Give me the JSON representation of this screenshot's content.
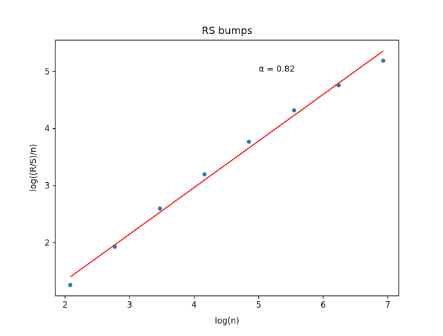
{
  "chart_data": {
    "type": "scatter",
    "title": "RS bumps",
    "xlabel": "log(n)",
    "ylabel": "log((R/S)/n)",
    "xlim": [
      1.85,
      7.17
    ],
    "ylim": [
      1.07,
      5.55
    ],
    "xticks": [
      2,
      3,
      4,
      5,
      6,
      7
    ],
    "yticks": [
      2,
      3,
      4,
      5
    ],
    "grid": false,
    "legend": "none",
    "series": [
      {
        "kind": "points",
        "color": "#1f77b4",
        "x": [
          2.08,
          2.77,
          3.47,
          4.16,
          4.85,
          5.55,
          6.24,
          6.93
        ],
        "y": [
          1.26,
          1.93,
          2.6,
          3.2,
          3.77,
          4.32,
          4.76,
          5.19
        ]
      },
      {
        "kind": "fit-line",
        "color": "#ff0000",
        "x": [
          2.08,
          6.93
        ],
        "y": [
          1.4,
          5.36
        ]
      }
    ],
    "annotations": [
      {
        "text": "α = 0.82",
        "x": 5.0,
        "y": 5.0
      }
    ]
  }
}
